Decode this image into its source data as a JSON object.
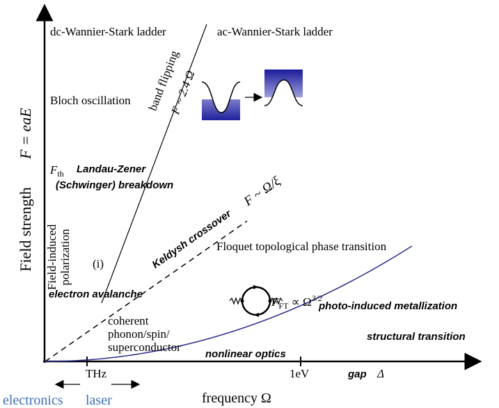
{
  "axes": {
    "y_label": "Field strength",
    "y_symbol": "F = eaE",
    "x_label": "frequency Ω"
  },
  "labels": {
    "dc_ladder": "dc-Wannier-Stark ladder",
    "ac_ladder": "ac-Wannier-Stark ladder",
    "band_flipping": "band flipping",
    "band_flipping_law": "F ~ 2.4 Ω",
    "bloch": "Bloch oscillation",
    "threshold": {
      "main": "F",
      "sub": "th"
    },
    "landau_zener_1": "Landau-Zener",
    "landau_zener_2": "(Schwinger) breakdown",
    "field_induced_1": "Field-induced",
    "field_induced_2": "polarization",
    "keldysh_law": "F ~ Ω/ξ",
    "keldysh": "Keldysh crossover",
    "marker_i": "(i)",
    "floquet": "Floquet topological phase transition",
    "avalanche": "electron avalanche",
    "floquet_law": {
      "main": "F",
      "sub": "FT",
      "rest": " ∝ Ω",
      "sup": "3/2"
    },
    "metallization": "photo-induced metallization",
    "coherent_1": "coherent",
    "coherent_2": "phonon/spin/",
    "coherent_3": "superconductor",
    "structural": "structural transition",
    "nonlinear": "nonlinear optics",
    "thz": "THz",
    "ev": "1eV",
    "gap": "gap",
    "delta": "Δ",
    "electronics": "electronics",
    "laser": "laser"
  }
}
